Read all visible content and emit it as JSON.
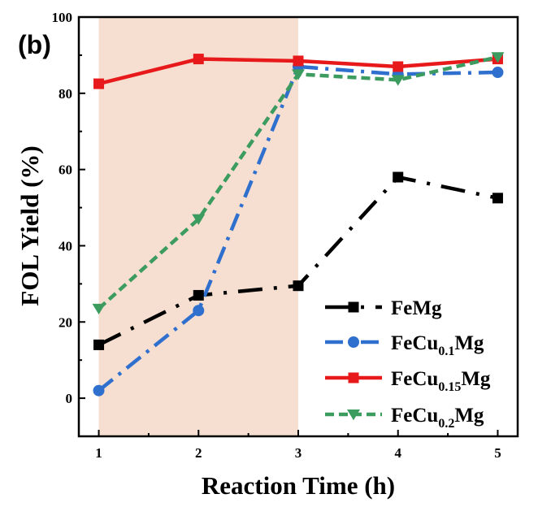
{
  "chart_data": {
    "type": "line",
    "panel_label": "(b)",
    "xlabel": "Reaction Time (h)",
    "ylabel": "FOL Yield (%)",
    "xlim": [
      0.8,
      5.2
    ],
    "ylim": [
      -10,
      100
    ],
    "x_ticks": [
      1,
      2,
      3,
      4,
      5
    ],
    "x_tick_labels": [
      "1",
      "2",
      "3",
      "4",
      "5"
    ],
    "y_ticks": [
      0,
      20,
      40,
      60,
      80,
      100
    ],
    "y_tick_labels": [
      "0",
      "20",
      "40",
      "60",
      "80",
      "100"
    ],
    "shaded_region": {
      "x_start": 1,
      "x_end": 3,
      "color": "#f6dfd0"
    },
    "legend_position": "lower-right",
    "series": [
      {
        "name": "FeMg",
        "base": "FeMg",
        "sub": "",
        "tail": "",
        "color": "#000000",
        "marker": "square",
        "dash": "30,14,4,14",
        "width": 4.5,
        "x": [
          1,
          2,
          3,
          4,
          5
        ],
        "values": [
          14,
          27,
          29.5,
          58,
          52.5
        ]
      },
      {
        "name": "FeCu0.1Mg",
        "base": "FeCu",
        "sub": "0.1",
        "tail": "Mg",
        "color": "#2f6fce",
        "marker": "circle",
        "dash": "22,9,4,9",
        "width": 4.5,
        "x": [
          1,
          2,
          3,
          4,
          5
        ],
        "values": [
          2,
          23,
          87,
          85,
          85.5
        ]
      },
      {
        "name": "FeCu0.15Mg",
        "base": "FeCu",
        "sub": "0.15",
        "tail": "Mg",
        "color": "#e8191a",
        "marker": "square",
        "dash": "",
        "width": 4.5,
        "x": [
          1,
          2,
          3,
          4,
          5
        ],
        "values": [
          82.5,
          89,
          88.5,
          87,
          89
        ]
      },
      {
        "name": "FeCu0.2Mg",
        "base": "FeCu",
        "sub": "0.2",
        "tail": "Mg",
        "color": "#3c9b5f",
        "marker": "triangle-down",
        "dash": "11,6",
        "width": 4.5,
        "x": [
          1,
          2,
          3,
          4,
          5
        ],
        "values": [
          23.5,
          47,
          85,
          83.5,
          89.5
        ]
      }
    ]
  }
}
